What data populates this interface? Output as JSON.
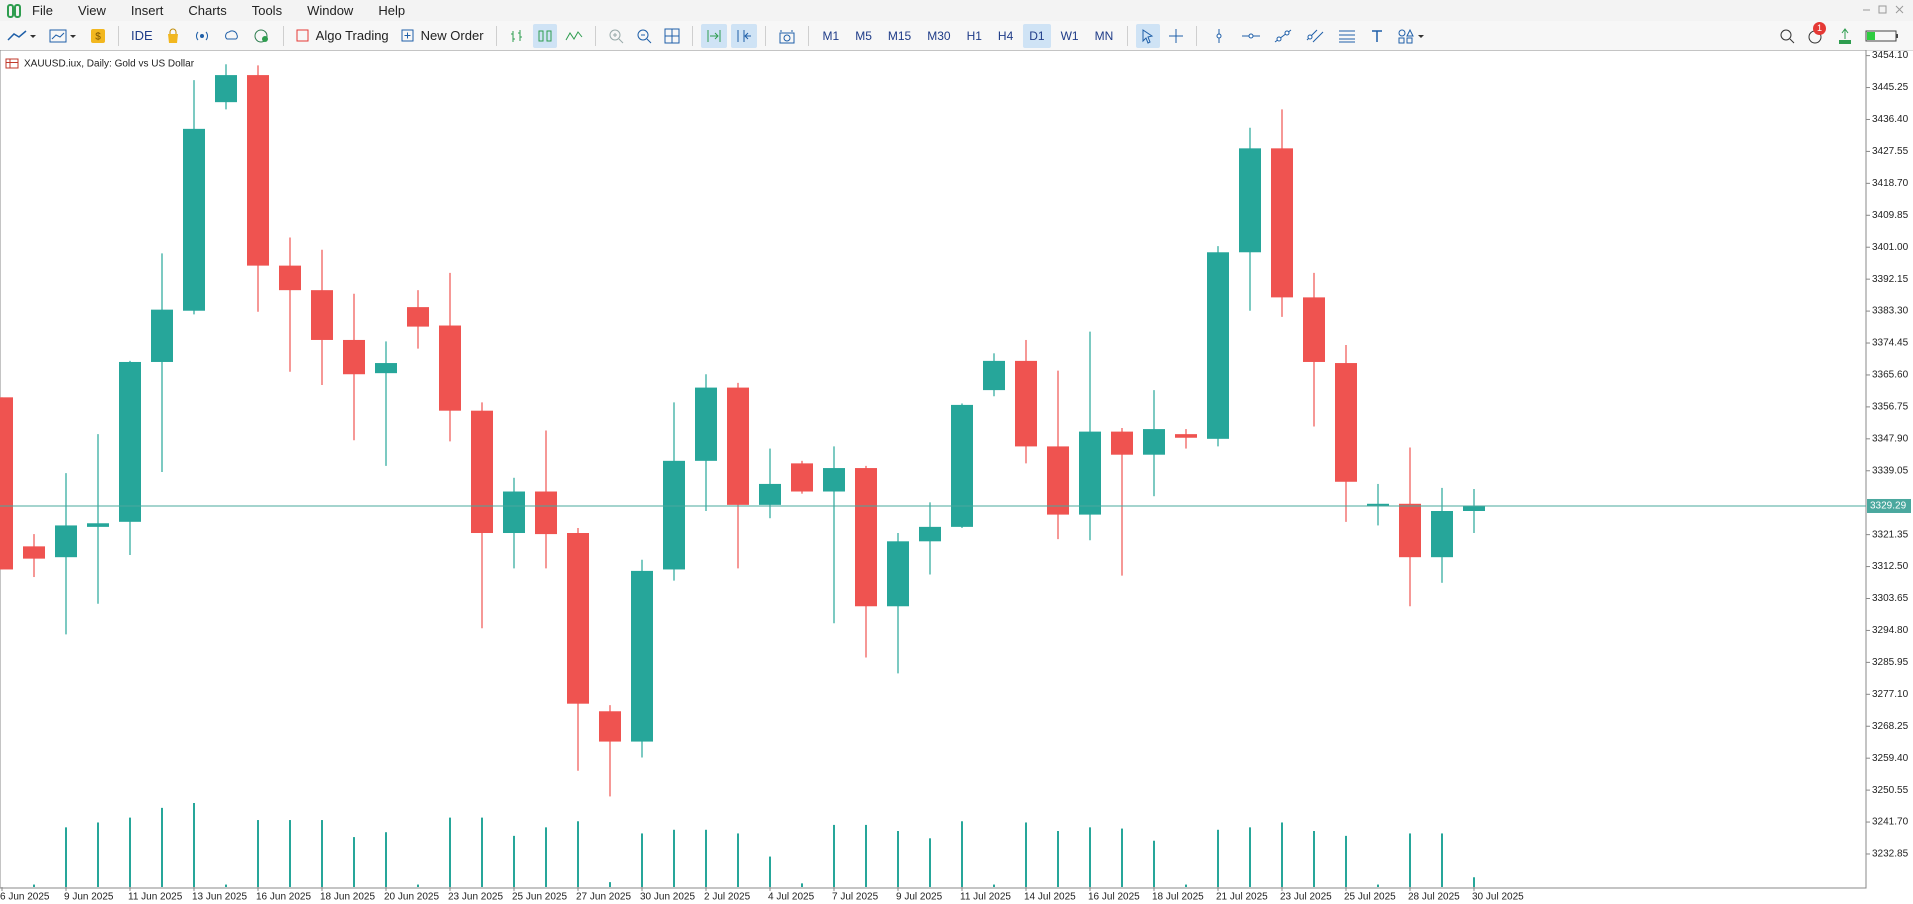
{
  "menu": [
    "File",
    "View",
    "Insert",
    "Charts",
    "Tools",
    "Window",
    "Help"
  ],
  "toolbar": {
    "ide": "IDE",
    "algo_trading": "Algo Trading",
    "new_order": "New Order",
    "timeframes": [
      "M1",
      "M5",
      "M15",
      "M30",
      "H1",
      "H4",
      "D1",
      "W1",
      "MN"
    ],
    "active_timeframe": "D1",
    "notifications": 1
  },
  "chart_data": {
    "type": "candlestick",
    "title": "XAUUSD.iux, Daily:  Gold vs US Dollar",
    "categories": [
      "6 Jun 2025",
      null,
      "9 Jun 2025",
      null,
      "11 Jun 2025",
      null,
      "13 Jun 2025",
      null,
      "16 Jun 2025",
      null,
      "18 Jun 2025",
      null,
      "20 Jun 2025",
      null,
      "23 Jun 2025",
      null,
      "25 Jun 2025",
      null,
      "27 Jun 2025",
      null,
      "30 Jun 2025",
      null,
      "2 Jul 2025",
      null,
      "4 Jul 2025",
      null,
      "7 Jul 2025",
      null,
      "9 Jul 2025",
      null,
      "11 Jul 2025",
      null,
      "14 Jul 2025",
      null,
      "16 Jul 2025",
      null,
      "18 Jul 2025",
      null,
      "21 Jul 2025",
      null,
      "23 Jul 2025",
      null,
      "25 Jul 2025",
      null,
      "28 Jul 2025",
      null,
      "30 Jul 2025"
    ],
    "open": [
      3359.4,
      3318.1,
      3315.1,
      3323.5,
      3324.9,
      3369.2,
      3383.4,
      3441.2,
      3448.7,
      3395.9,
      3389.1,
      3375.3,
      3366.1,
      3384.4,
      3379.3,
      3355.7,
      3321.8,
      3333.3,
      3321.8,
      3272.4,
      3264.0,
      3311.7,
      3341.8,
      3362.1,
      3329.6,
      3341.1,
      3333.3,
      3339.8,
      3301.5,
      3319.5,
      3323.5,
      3361.4,
      3369.5,
      3345.8,
      3326.9,
      3349.9,
      3343.5,
      3349.2,
      3347.9,
      3399.6,
      3428.4,
      3387.1,
      3368.9,
      3329.3,
      3329.9,
      3315.1,
      3327.9
    ],
    "high": [
      3359.4,
      3321.5,
      3338.4,
      3349.2,
      3369.5,
      3399.3,
      3447.3,
      3451.7,
      3451.4,
      3403.7,
      3400.3,
      3388.1,
      3374.9,
      3389.1,
      3393.9,
      3358.0,
      3337.1,
      3350.2,
      3323.2,
      3274.1,
      3314.4,
      3358.0,
      3365.8,
      3363.4,
      3345.2,
      3341.8,
      3345.8,
      3340.4,
      3321.8,
      3330.3,
      3357.7,
      3371.6,
      3375.3,
      3366.8,
      3377.6,
      3350.9,
      3361.4,
      3350.6,
      3401.3,
      3434.1,
      3439.2,
      3393.9,
      3373.9,
      3335.4,
      3345.5,
      3334.3,
      3334.0
    ],
    "low": [
      3311.7,
      3309.6,
      3293.7,
      3302.2,
      3315.7,
      3338.7,
      3382.4,
      3439.2,
      3383.1,
      3366.5,
      3362.8,
      3347.5,
      3340.4,
      3372.9,
      3347.2,
      3295.4,
      3312.0,
      3312.0,
      3255.9,
      3248.8,
      3259.6,
      3308.6,
      3327.9,
      3312.0,
      3325.9,
      3332.7,
      3296.8,
      3287.3,
      3282.9,
      3310.3,
      3323.2,
      3359.7,
      3341.1,
      3320.1,
      3319.8,
      3310.0,
      3332.0,
      3345.2,
      3345.8,
      3383.4,
      3381.7,
      3351.3,
      3324.9,
      3323.9,
      3301.5,
      3308.0,
      3321.8
    ],
    "close": [
      3311.7,
      3314.7,
      3323.9,
      3324.5,
      3369.2,
      3383.7,
      3433.8,
      3448.7,
      3395.9,
      3389.1,
      3375.3,
      3365.8,
      3368.9,
      3379.0,
      3355.7,
      3321.8,
      3333.3,
      3321.5,
      3274.5,
      3264.0,
      3311.3,
      3341.8,
      3362.1,
      3329.6,
      3335.4,
      3333.3,
      3339.8,
      3301.5,
      3319.5,
      3323.5,
      3357.3,
      3369.5,
      3345.8,
      3326.9,
      3349.9,
      3343.5,
      3350.6,
      3348.2,
      3399.6,
      3428.4,
      3387.1,
      3369.2,
      3336.0,
      3329.9,
      3315.1,
      3327.9,
      3329.3
    ],
    "volume": [
      null,
      2,
      49,
      53,
      57,
      65,
      69,
      2,
      55,
      55,
      55,
      41,
      45,
      2,
      57,
      57,
      42,
      49,
      54,
      4,
      44,
      47,
      47,
      44,
      25,
      3,
      51,
      51,
      46,
      40,
      54,
      2,
      53,
      46,
      49,
      48,
      38,
      2,
      47,
      49,
      53,
      46,
      42,
      2,
      44,
      44,
      8
    ],
    "current_price": 3329.29,
    "ylim": [
      3223.7,
      3455.1
    ],
    "yticks": [
      {
        "value": 3454.1,
        "label": "3454.10"
      },
      {
        "value": 3445.25,
        "label": "3445.25"
      },
      {
        "value": 3436.4,
        "label": "3436.40"
      },
      {
        "value": 3427.55,
        "label": "3427.55"
      },
      {
        "value": 3418.7,
        "label": "3418.70"
      },
      {
        "value": 3409.85,
        "label": "3409.85"
      },
      {
        "value": 3401,
        "label": "3401.00"
      },
      {
        "value": 3392.15,
        "label": "3392.15"
      },
      {
        "value": 3383.3,
        "label": "3383.30"
      },
      {
        "value": 3374.45,
        "label": "3374.45"
      },
      {
        "value": 3365.6,
        "label": "3365.60"
      },
      {
        "value": 3356.75,
        "label": "3356.75"
      },
      {
        "value": 3347.9,
        "label": "3347.90"
      },
      {
        "value": 3339.05,
        "label": "3339.05"
      },
      {
        "value": 3321.35,
        "label": "3321.35"
      },
      {
        "value": 3312.5,
        "label": "3312.50"
      },
      {
        "value": 3303.65,
        "label": "3303.65"
      },
      {
        "value": 3294.8,
        "label": "3294.80"
      },
      {
        "value": 3285.95,
        "label": "3285.95"
      },
      {
        "value": 3277.1,
        "label": "3277.10"
      },
      {
        "value": 3268.25,
        "label": "3268.25"
      },
      {
        "value": 3259.4,
        "label": "3259.40"
      },
      {
        "value": 3250.55,
        "label": "3250.55"
      },
      {
        "value": 3241.7,
        "label": "3241.70"
      },
      {
        "value": 3232.85,
        "label": "3232.85"
      }
    ],
    "up_color": "#26a69a",
    "down_color": "#ef5350",
    "price_line_color": "#4aa89e",
    "grid": false
  }
}
